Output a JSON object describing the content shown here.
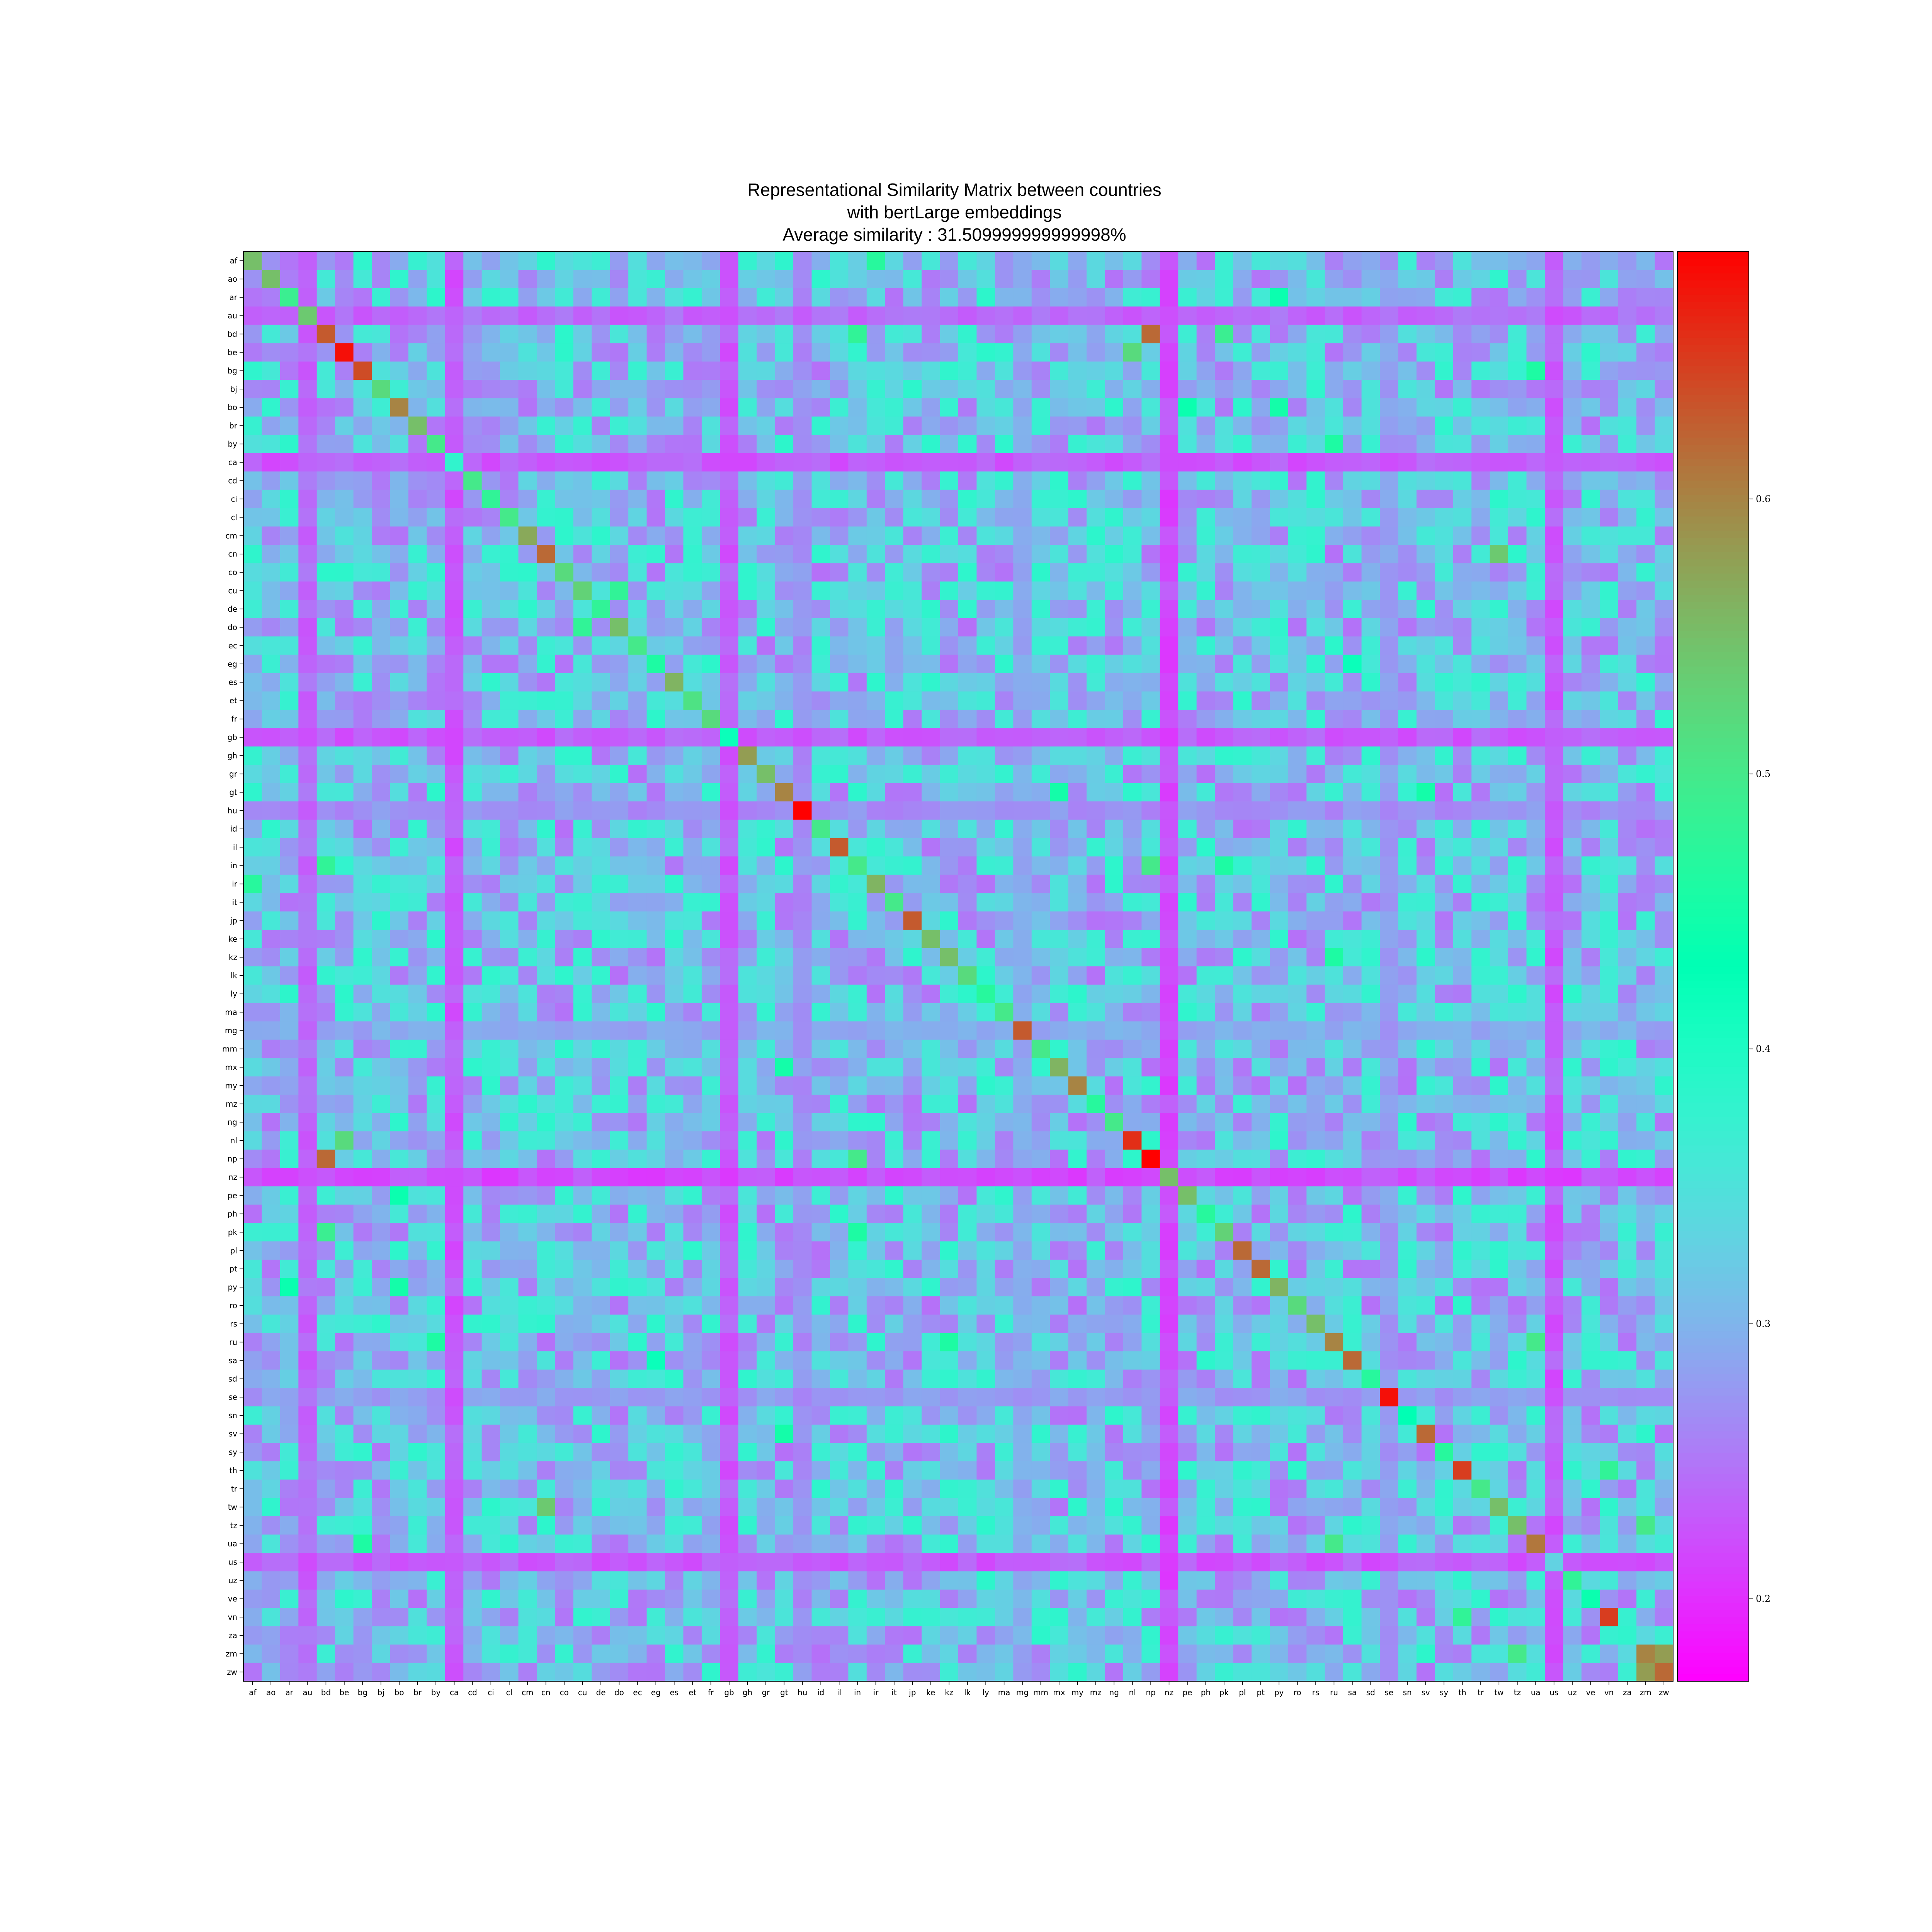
{
  "chart_data": {
    "type": "heatmap",
    "title_lines": [
      "Representational Similarity Matrix between countries",
      "with bertLarge embeddings",
      "Average similarity : 31.509999999999998%"
    ],
    "labels": [
      "af",
      "ao",
      "ar",
      "au",
      "bd",
      "be",
      "bg",
      "bj",
      "bo",
      "br",
      "by",
      "ca",
      "cd",
      "ci",
      "cl",
      "cm",
      "cn",
      "co",
      "cu",
      "de",
      "do",
      "ec",
      "eg",
      "es",
      "et",
      "fr",
      "gb",
      "gh",
      "gr",
      "gt",
      "hu",
      "id",
      "il",
      "in",
      "ir",
      "it",
      "jp",
      "ke",
      "kz",
      "lk",
      "ly",
      "ma",
      "mg",
      "mm",
      "mx",
      "my",
      "mz",
      "ng",
      "nl",
      "np",
      "nz",
      "pe",
      "ph",
      "pk",
      "pl",
      "pt",
      "py",
      "ro",
      "rs",
      "ru",
      "sa",
      "sd",
      "se",
      "sn",
      "sv",
      "sy",
      "th",
      "tr",
      "tw",
      "tz",
      "ua",
      "us",
      "uz",
      "ve",
      "vn",
      "za",
      "zm",
      "zw"
    ],
    "colormap": "rainbow",
    "colorbar": {
      "min": 0.17,
      "max": 0.69,
      "ticks": [
        0.2,
        0.3,
        0.4,
        0.5,
        0.6
      ],
      "tick_labels": [
        "0.2",
        "0.3",
        "0.4",
        "0.5",
        "0.6"
      ]
    },
    "grid": false,
    "diagonal": [
      0.55,
      0.55,
      0.49,
      0.54,
      0.63,
      0.68,
      0.64,
      0.52,
      0.6,
      0.55,
      0.5,
      0.38,
      0.5,
      0.48,
      0.5,
      0.57,
      0.62,
      0.52,
      0.53,
      0.48,
      0.55,
      0.5,
      0.46,
      0.56,
      0.51,
      0.52,
      0.42,
      0.58,
      0.55,
      0.6,
      0.69,
      0.5,
      0.63,
      0.5,
      0.56,
      0.5,
      0.63,
      0.55,
      0.55,
      0.52,
      0.47,
      0.5,
      0.63,
      0.5,
      0.56,
      0.6,
      0.47,
      0.5,
      0.66,
      0.69,
      0.55,
      0.55,
      0.47,
      0.53,
      0.62,
      0.62,
      0.56,
      0.52,
      0.55,
      0.6,
      0.62,
      0.47,
      0.68,
      0.43,
      0.62,
      0.47,
      0.65,
      0.5,
      0.55,
      0.55,
      0.61,
      0.33,
      0.48,
      0.44,
      0.65,
      0.38,
      0.6,
      0.62
    ],
    "rows": [
      "af",
      "ao",
      "ar",
      "au",
      "bd",
      "be",
      "bg",
      "bj",
      "bo",
      "br",
      "by",
      "ca",
      "cd",
      "ci",
      "cl",
      "cm",
      "cn",
      "co",
      "cu",
      "de",
      "do",
      "ec",
      "eg",
      "es",
      "et",
      "fr",
      "gb",
      "gh",
      "gr",
      "gt",
      "hu",
      "id",
      "il",
      "in",
      "ir",
      "it",
      "jp",
      "ke",
      "kz",
      "lk",
      "ly",
      "ma",
      "mg",
      "mm",
      "mx",
      "my",
      "mz",
      "ng",
      "nl",
      "np",
      "nz",
      "pe",
      "ph",
      "pk",
      "pl",
      "pt",
      "py",
      "ro",
      "rs",
      "ru",
      "sa",
      "sd",
      "se",
      "sn",
      "sv",
      "sy",
      "th",
      "tr",
      "tw",
      "tz",
      "ua",
      "us",
      "uz",
      "ve",
      "vn",
      "za",
      "zm",
      "zw"
    ],
    "notable_pairs": [
      {
        "a": "bd",
        "b": "np",
        "value": 0.62
      },
      {
        "a": "bd",
        "b": "pk",
        "value": 0.49
      },
      {
        "a": "bd",
        "b": "in",
        "value": 0.48
      },
      {
        "a": "be",
        "b": "nl",
        "value": 0.52
      },
      {
        "a": "cn",
        "b": "tw",
        "value": 0.54
      },
      {
        "a": "zm",
        "b": "zw",
        "value": 0.58
      },
      {
        "a": "tz",
        "b": "zm",
        "value": 0.5
      },
      {
        "a": "ru",
        "b": "ua",
        "value": 0.5
      },
      {
        "a": "af",
        "b": "ir",
        "value": 0.47
      },
      {
        "a": "cu",
        "b": "do",
        "value": 0.48
      },
      {
        "a": "in",
        "b": "np",
        "value": 0.5
      },
      {
        "a": "th",
        "b": "vn",
        "value": 0.48
      },
      {
        "a": "in",
        "b": "pk",
        "value": 0.46
      },
      {
        "a": "kz",
        "b": "ru",
        "value": 0.46
      },
      {
        "a": "bg",
        "b": "ua",
        "value": 0.46
      },
      {
        "a": "by",
        "b": "ru",
        "value": 0.46
      },
      {
        "a": "gt",
        "b": "mx",
        "value": 0.45
      },
      {
        "a": "sv",
        "b": "gt",
        "value": 0.45
      },
      {
        "a": "pe",
        "b": "bo",
        "value": 0.44
      },
      {
        "a": "py",
        "b": "bo",
        "value": 0.45
      },
      {
        "a": "ar",
        "b": "py",
        "value": 0.44
      },
      {
        "a": "sa",
        "b": "eg",
        "value": 0.42
      }
    ],
    "low_rows": [
      {
        "label": "au",
        "value": 0.24
      },
      {
        "label": "ca",
        "value": 0.23
      },
      {
        "label": "gb",
        "value": 0.23
      },
      {
        "label": "nz",
        "value": 0.22
      },
      {
        "label": "us",
        "value": 0.23
      },
      {
        "label": "hu",
        "value": 0.27
      },
      {
        "label": "se",
        "value": 0.28
      },
      {
        "label": "mg",
        "value": 0.29
      }
    ],
    "overall_average": 0.315
  }
}
